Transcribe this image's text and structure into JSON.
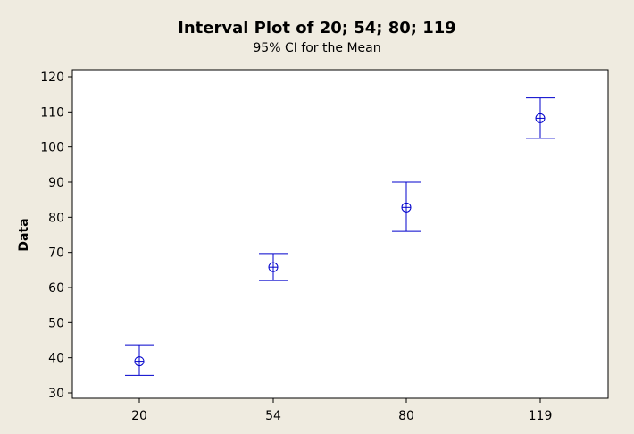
{
  "chart_data": {
    "type": "interval",
    "title": "Interval Plot of 20; 54; 80; 119",
    "subtitle": "95% CI for the Mean",
    "xlabel": "",
    "ylabel": "Data",
    "categories": [
      "20",
      "54",
      "80",
      "119"
    ],
    "series": [
      {
        "mean": [
          39,
          65.8,
          82.8,
          108.2
        ],
        "lower": [
          35,
          62,
          76,
          102.5
        ],
        "upper": [
          43.7,
          69.7,
          90,
          114
        ]
      }
    ],
    "ylim": [
      30,
      120
    ],
    "yticks": [
      30,
      40,
      50,
      60,
      70,
      80,
      90,
      100,
      110,
      120
    ],
    "grid": false,
    "legend": "none",
    "colors": {
      "series": "#0000cc",
      "plot_background": "#ffffff",
      "figure_background": "#efebe0"
    }
  }
}
